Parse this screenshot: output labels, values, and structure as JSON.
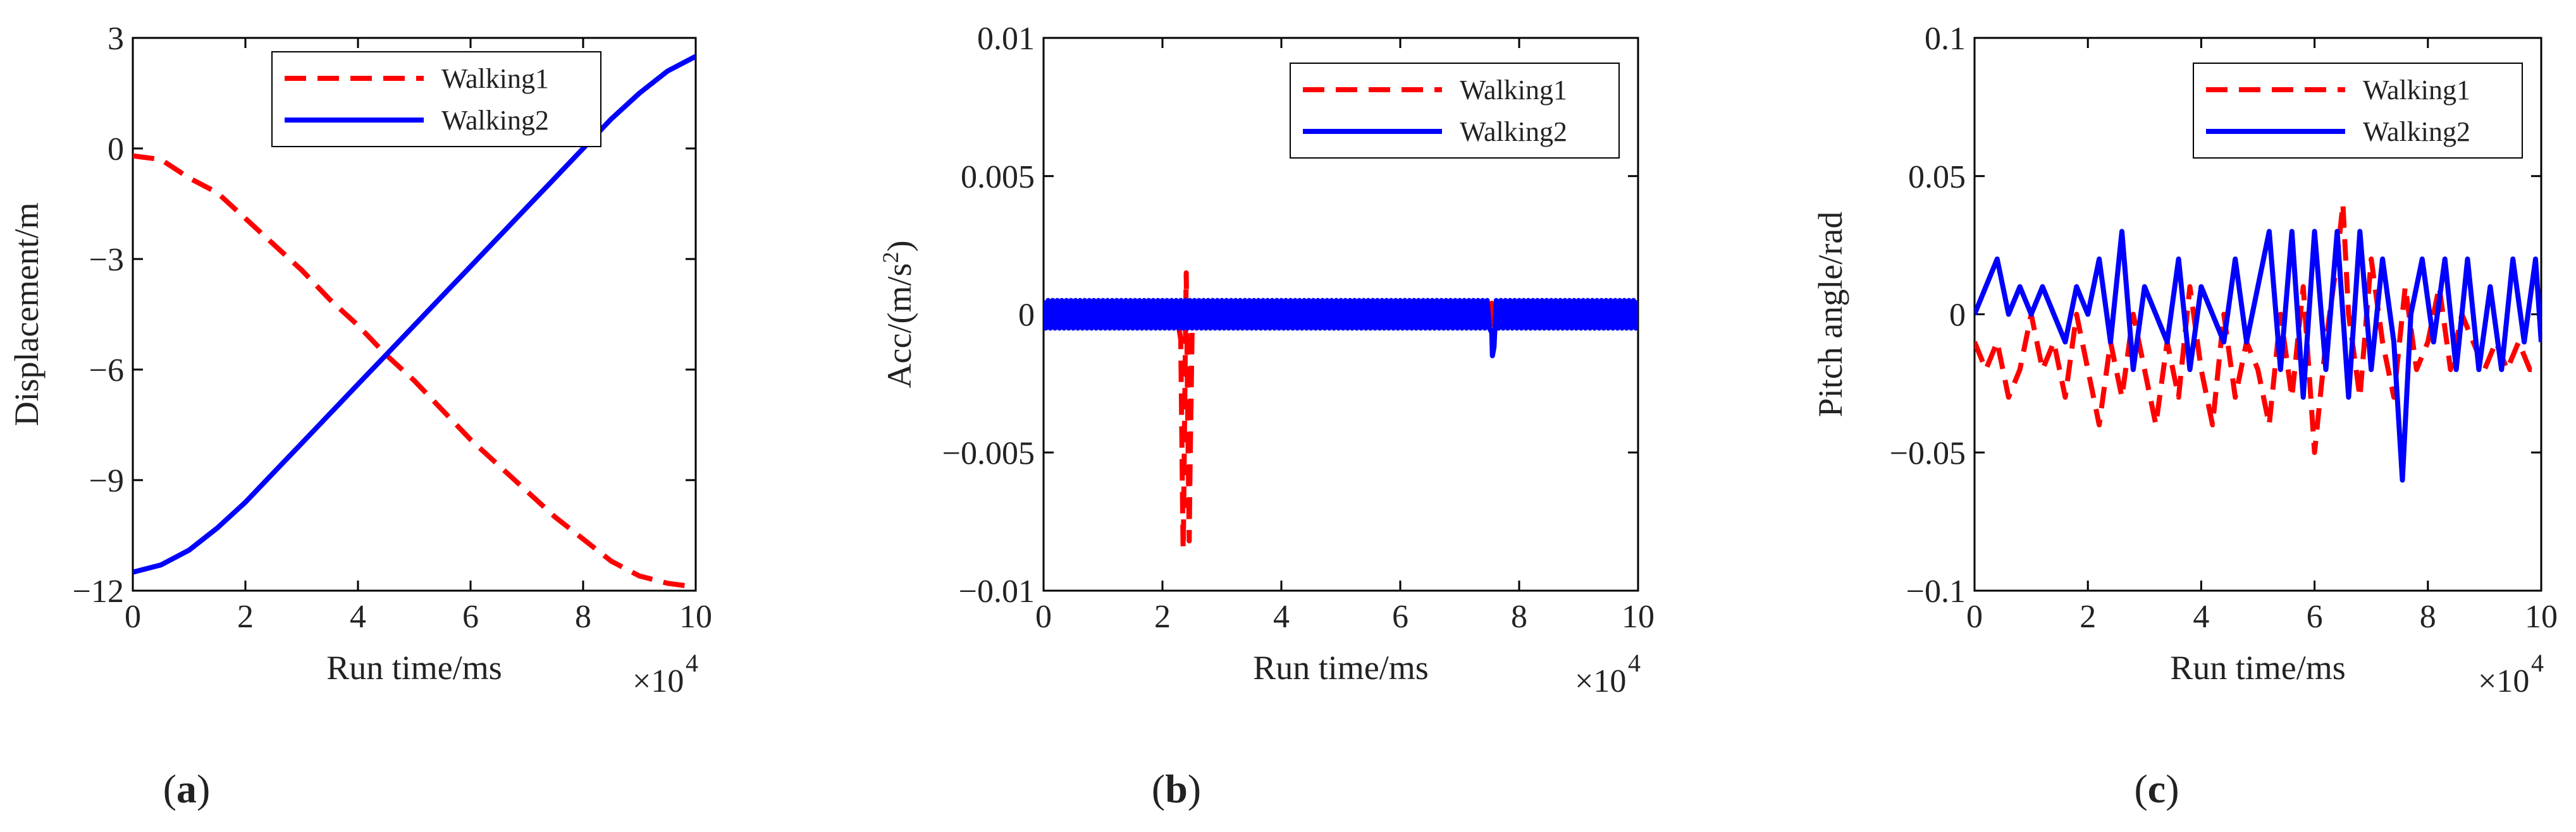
{
  "chart_data": [
    {
      "type": "line",
      "panel_label": "a",
      "xlabel": "Run time/ms",
      "ylabel": "Displacement/m",
      "x_multiplier": "×10",
      "x_multiplier_exp": "4",
      "xlim": [
        0,
        10
      ],
      "ylim": [
        -12,
        3
      ],
      "xticks": [
        "0",
        "2",
        "4",
        "6",
        "8",
        "10"
      ],
      "yticks": [
        "3",
        "0",
        "−3",
        "−6",
        "−9",
        "−12"
      ],
      "ytick_values": [
        3,
        0,
        -3,
        -6,
        -9,
        -12
      ],
      "legend_position": "top-center",
      "series": [
        {
          "name": "Walking1",
          "color": "#ff0000",
          "dash": true,
          "x": [
            0,
            0.5,
            1,
            1.5,
            2,
            2.5,
            3,
            3.5,
            4,
            4.5,
            5,
            5.5,
            6,
            6.5,
            7,
            7.5,
            8,
            8.5,
            9,
            9.5,
            10
          ],
          "y": [
            -0.2,
            -0.3,
            -0.8,
            -1.2,
            -1.9,
            -2.6,
            -3.3,
            -4.1,
            -4.8,
            -5.6,
            -6.3,
            -7.1,
            -7.9,
            -8.6,
            -9.3,
            -10.0,
            -10.6,
            -11.2,
            -11.6,
            -11.8,
            -11.9
          ]
        },
        {
          "name": "Walking2",
          "color": "#0000ff",
          "dash": false,
          "x": [
            0,
            0.5,
            1,
            1.5,
            2,
            2.5,
            3,
            3.5,
            4,
            4.5,
            5,
            5.5,
            6,
            6.5,
            7,
            7.5,
            8,
            8.5,
            9,
            9.5,
            10
          ],
          "y": [
            -11.5,
            -11.3,
            -10.9,
            -10.3,
            -9.6,
            -8.8,
            -8.0,
            -7.2,
            -6.4,
            -5.6,
            -4.8,
            -4.0,
            -3.2,
            -2.4,
            -1.6,
            -0.8,
            0.0,
            0.8,
            1.5,
            2.1,
            2.5
          ]
        }
      ]
    },
    {
      "type": "line",
      "panel_label": "b",
      "xlabel": "Run time/ms",
      "ylabel": "Acc/(m/s",
      "ylabel_sup": "2",
      "ylabel_end": ")",
      "x_multiplier": "×10",
      "x_multiplier_exp": "4",
      "xlim": [
        0,
        10
      ],
      "ylim": [
        -0.01,
        0.01
      ],
      "xticks": [
        "0",
        "2",
        "4",
        "6",
        "8",
        "10"
      ],
      "yticks": [
        "0.01",
        "0.005",
        "0",
        "−0.005",
        "−0.01"
      ],
      "ytick_values": [
        0.01,
        0.005,
        0,
        -0.005,
        -0.01
      ],
      "legend_position": "top-right",
      "series": [
        {
          "name": "Walking1",
          "color": "#ff0000",
          "dash": true,
          "x": [
            0,
            0.5,
            1,
            1.5,
            2,
            2.3,
            2.35,
            2.4,
            2.45,
            2.5,
            3,
            3.5,
            4,
            4.5,
            5,
            5.5,
            6,
            6.5,
            7,
            7.5,
            8,
            8.5,
            9,
            9.5,
            10
          ],
          "y": [
            0,
            0,
            0,
            0,
            0,
            0,
            -0.0085,
            0.0015,
            -0.0082,
            0,
            0,
            0,
            0,
            0,
            0,
            0,
            0,
            0,
            0,
            0,
            0,
            0,
            0,
            0,
            0
          ],
          "band": 0.0004
        },
        {
          "name": "Walking2",
          "color": "#0000ff",
          "dash": false,
          "x": [
            0,
            0.5,
            1,
            1.5,
            2,
            2.5,
            3,
            3.5,
            4,
            4.5,
            5,
            5.5,
            6,
            6.5,
            7,
            7.5,
            7.55,
            7.6,
            8,
            8.5,
            9,
            9.5,
            10
          ],
          "y": [
            0,
            0,
            0,
            0,
            0,
            0,
            0,
            0,
            0,
            0,
            0,
            0,
            0,
            0,
            0,
            0,
            -0.0015,
            0,
            0,
            0,
            0,
            0,
            0
          ],
          "band": 0.0005
        }
      ]
    },
    {
      "type": "line",
      "panel_label": "c",
      "xlabel": "Run time/ms",
      "ylabel": "Pitch angle/rad",
      "x_multiplier": "×10",
      "x_multiplier_exp": "4",
      "xlim": [
        0,
        10
      ],
      "ylim": [
        -0.1,
        0.1
      ],
      "xticks": [
        "0",
        "2",
        "4",
        "6",
        "8",
        "10"
      ],
      "yticks": [
        "0.1",
        "0.05",
        "0",
        "−0.05",
        "−0.1"
      ],
      "ytick_values": [
        0.1,
        0.05,
        0,
        -0.05,
        -0.1
      ],
      "legend_position": "top-right",
      "series": [
        {
          "name": "Walking1",
          "color": "#ff0000",
          "dash": true,
          "x": [
            0,
            0.2,
            0.4,
            0.6,
            0.8,
            1.0,
            1.2,
            1.4,
            1.6,
            1.8,
            2.0,
            2.2,
            2.4,
            2.6,
            2.8,
            3.0,
            3.2,
            3.4,
            3.6,
            3.8,
            4.0,
            4.2,
            4.4,
            4.6,
            4.8,
            5.0,
            5.2,
            5.4,
            5.6,
            5.8,
            6.0,
            6.2,
            6.4,
            6.5,
            6.6,
            6.8,
            7.0,
            7.2,
            7.4,
            7.6,
            7.8,
            8.0,
            8.2,
            8.4,
            8.6,
            8.8,
            9.0,
            9.2,
            9.4,
            9.6,
            9.8,
            10
          ],
          "y": [
            -0.01,
            -0.02,
            -0.01,
            -0.03,
            -0.02,
            0.0,
            -0.02,
            -0.01,
            -0.03,
            0.0,
            -0.02,
            -0.04,
            -0.01,
            -0.03,
            0.0,
            -0.02,
            -0.04,
            -0.01,
            -0.03,
            0.01,
            -0.02,
            -0.04,
            0.0,
            -0.03,
            -0.01,
            -0.02,
            -0.04,
            0.0,
            -0.03,
            0.01,
            -0.05,
            -0.01,
            0.02,
            0.04,
            0.0,
            -0.03,
            0.02,
            -0.01,
            -0.03,
            0.01,
            -0.02,
            -0.01,
            0.01,
            -0.02,
            0.0,
            -0.01,
            -0.02,
            -0.01,
            -0.02,
            -0.01,
            -0.02,
            -0.02
          ]
        },
        {
          "name": "Walking2",
          "color": "#0000ff",
          "dash": false,
          "x": [
            0,
            0.2,
            0.4,
            0.6,
            0.8,
            1.0,
            1.2,
            1.4,
            1.6,
            1.8,
            2.0,
            2.2,
            2.4,
            2.6,
            2.8,
            3.0,
            3.2,
            3.4,
            3.6,
            3.8,
            4.0,
            4.2,
            4.4,
            4.6,
            4.8,
            5.0,
            5.2,
            5.4,
            5.6,
            5.8,
            6.0,
            6.2,
            6.4,
            6.6,
            6.8,
            7.0,
            7.2,
            7.4,
            7.55,
            7.7,
            7.9,
            8.1,
            8.3,
            8.5,
            8.7,
            8.9,
            9.1,
            9.3,
            9.5,
            9.7,
            9.9,
            10
          ],
          "y": [
            0.0,
            0.01,
            0.02,
            0.0,
            0.01,
            0.0,
            0.01,
            0.0,
            -0.01,
            0.01,
            0.0,
            0.02,
            -0.01,
            0.03,
            -0.02,
            0.01,
            0.0,
            -0.01,
            0.02,
            -0.02,
            0.01,
            0.0,
            -0.01,
            0.02,
            -0.01,
            0.01,
            0.03,
            -0.02,
            0.03,
            -0.03,
            0.03,
            -0.02,
            0.03,
            -0.03,
            0.03,
            -0.02,
            0.02,
            -0.01,
            -0.06,
            0.0,
            0.02,
            -0.01,
            0.02,
            -0.02,
            0.02,
            -0.02,
            0.01,
            -0.02,
            0.02,
            -0.01,
            0.02,
            -0.01
          ]
        }
      ]
    }
  ]
}
